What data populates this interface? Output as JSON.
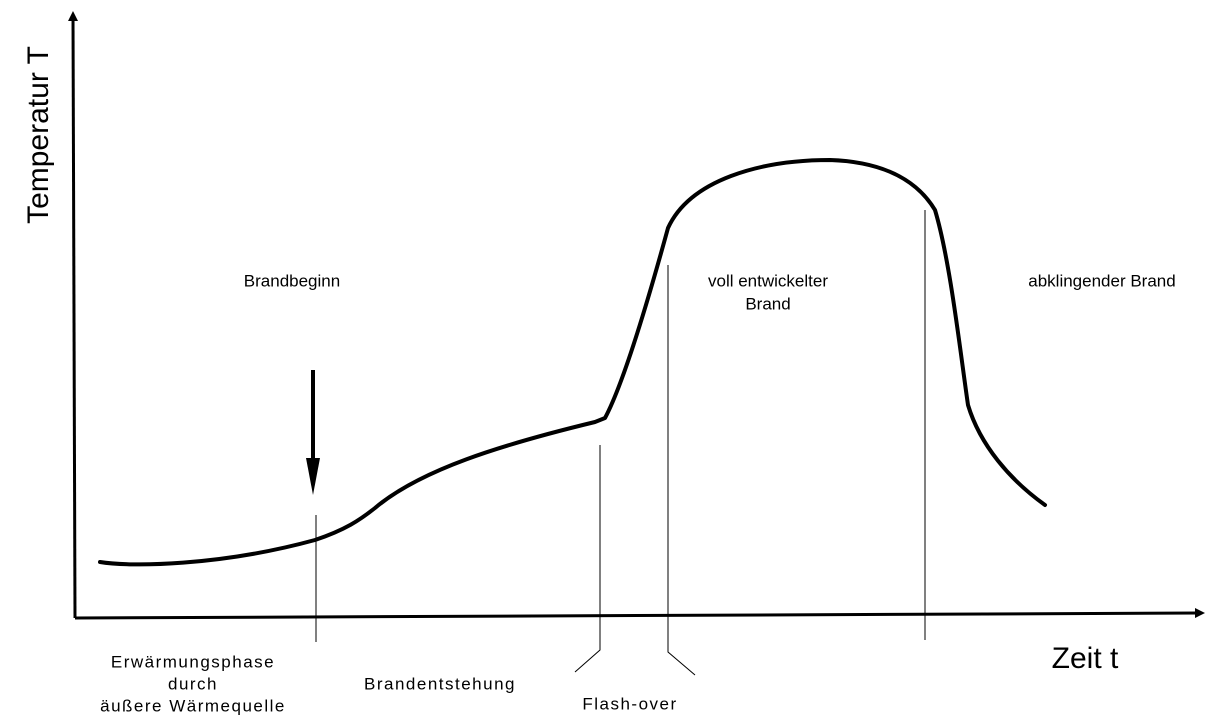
{
  "axes": {
    "y_label": "Temperatur T",
    "x_label": "Zeit t"
  },
  "phases": {
    "brandbeginn": "Brandbeginn",
    "voll": {
      "lines": [
        "voll entwickelter",
        "Brand"
      ]
    },
    "abklingend": "abklingender Brand",
    "erwaermung": {
      "lines": [
        "Erwärmungsphase",
        "durch",
        "äußere Wärmequelle"
      ]
    },
    "brandentstehung": "Brandentstehung",
    "flashover": "Flash-over"
  }
}
